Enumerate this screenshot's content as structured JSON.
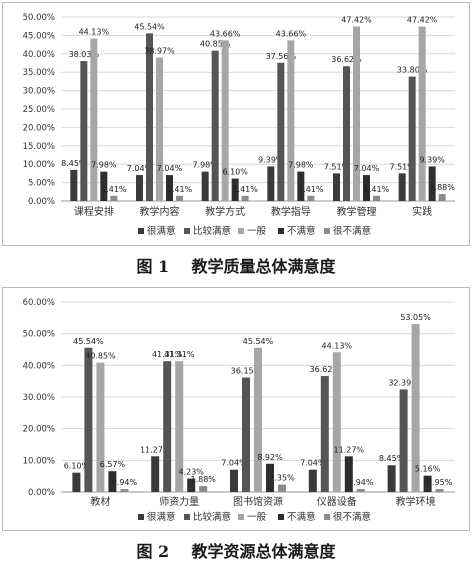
{
  "colors": {
    "很满意": "#3a3a3a",
    "比较满意": "#555555",
    "一般": "#a6a6a6",
    "不满意": "#2e2e2e",
    "很不满意": "#8c8c8c",
    "grid": "#d9d9d9",
    "text": "#333333"
  },
  "figures": [
    {
      "number": "图 1",
      "title": "教学质量总体满意度"
    },
    {
      "number": "图 2",
      "title": "教学资源总体满意度"
    }
  ],
  "chart_data": [
    {
      "type": "bar",
      "title": "",
      "xlabel": "",
      "ylabel": "",
      "ylim": [
        0,
        50
      ],
      "yticks": [
        "0.00%",
        "5.00%",
        "10.00%",
        "15.00%",
        "20.00%",
        "25.00%",
        "30.00%",
        "35.00%",
        "40.00%",
        "45.00%",
        "50.00%"
      ],
      "grid": true,
      "legend": "bottom",
      "categories": [
        "课程安排",
        "教学内容",
        "教学方式",
        "教学指导",
        "教学管理",
        "实践"
      ],
      "series": [
        {
          "name": "很满意",
          "values": [
            8.45,
            7.04,
            7.98,
            9.39,
            7.51,
            7.51
          ],
          "labels": [
            "8.45%",
            "7.04%",
            "7.98%",
            "9.39%",
            "7.51%",
            "7.51%"
          ]
        },
        {
          "name": "比较满意",
          "values": [
            38.03,
            45.54,
            40.85,
            37.56,
            36.62,
            33.8
          ],
          "labels": [
            "38.03%",
            "45.54%",
            "40.85%",
            "37.56%",
            "36.62%",
            "33.80%"
          ]
        },
        {
          "name": "一般",
          "values": [
            44.13,
            38.97,
            43.66,
            43.66,
            47.42,
            47.42
          ],
          "labels": [
            "44.13%",
            "38.97%",
            "43.66%",
            "43.66%",
            "47.42%",
            "47.42%"
          ]
        },
        {
          "name": "不满意",
          "values": [
            7.98,
            7.04,
            6.1,
            7.98,
            7.04,
            9.39
          ],
          "labels": [
            "7.98%",
            "7.04%",
            "6.10%",
            "7.98%",
            "7.04%",
            "9.39%"
          ]
        },
        {
          "name": "很不满意",
          "values": [
            1.41,
            1.41,
            1.41,
            1.41,
            1.41,
            1.88
          ],
          "labels": [
            "1.41%",
            "1.41%",
            "1.41%",
            "1.41%",
            "1.41%",
            "1.88%"
          ]
        }
      ]
    },
    {
      "type": "bar",
      "title": "",
      "xlabel": "",
      "ylabel": "",
      "ylim": [
        0,
        60
      ],
      "yticks": [
        "0.00%",
        "10.00%",
        "20.00%",
        "30.00%",
        "40.00%",
        "50.00%",
        "60.00%"
      ],
      "grid": true,
      "legend": "bottom",
      "categories": [
        "教材",
        "师资力量",
        "图书馆资源",
        "仪器设备",
        "教学环境"
      ],
      "series": [
        {
          "name": "很满意",
          "values": [
            6.1,
            11.27,
            7.04,
            7.04,
            8.45
          ],
          "labels": [
            "6.10%",
            "11.27%",
            "7.04%",
            "7.04%",
            "8.45%"
          ]
        },
        {
          "name": "比较满意",
          "values": [
            45.54,
            41.31,
            36.15,
            36.62,
            32.39
          ],
          "labels": [
            "45.54%",
            "41.31%",
            "36.15%",
            "36.62%",
            "32.39%"
          ]
        },
        {
          "name": "一般",
          "values": [
            40.85,
            41.31,
            45.54,
            44.13,
            53.05
          ],
          "labels": [
            "40.85%",
            "41.31%",
            "45.54%",
            "44.13%",
            "53.05%"
          ]
        },
        {
          "name": "不满意",
          "values": [
            6.57,
            4.23,
            8.92,
            11.27,
            5.16
          ],
          "labels": [
            "6.57%",
            "4.23%",
            "8.92%",
            "11.27%",
            "5.16%"
          ]
        },
        {
          "name": "很不满意",
          "values": [
            0.94,
            1.88,
            2.35,
            0.94,
            0.95
          ],
          "labels": [
            "0.94%",
            "1.88%",
            "2.35%",
            "0.94%",
            "0.95%"
          ]
        }
      ]
    }
  ]
}
